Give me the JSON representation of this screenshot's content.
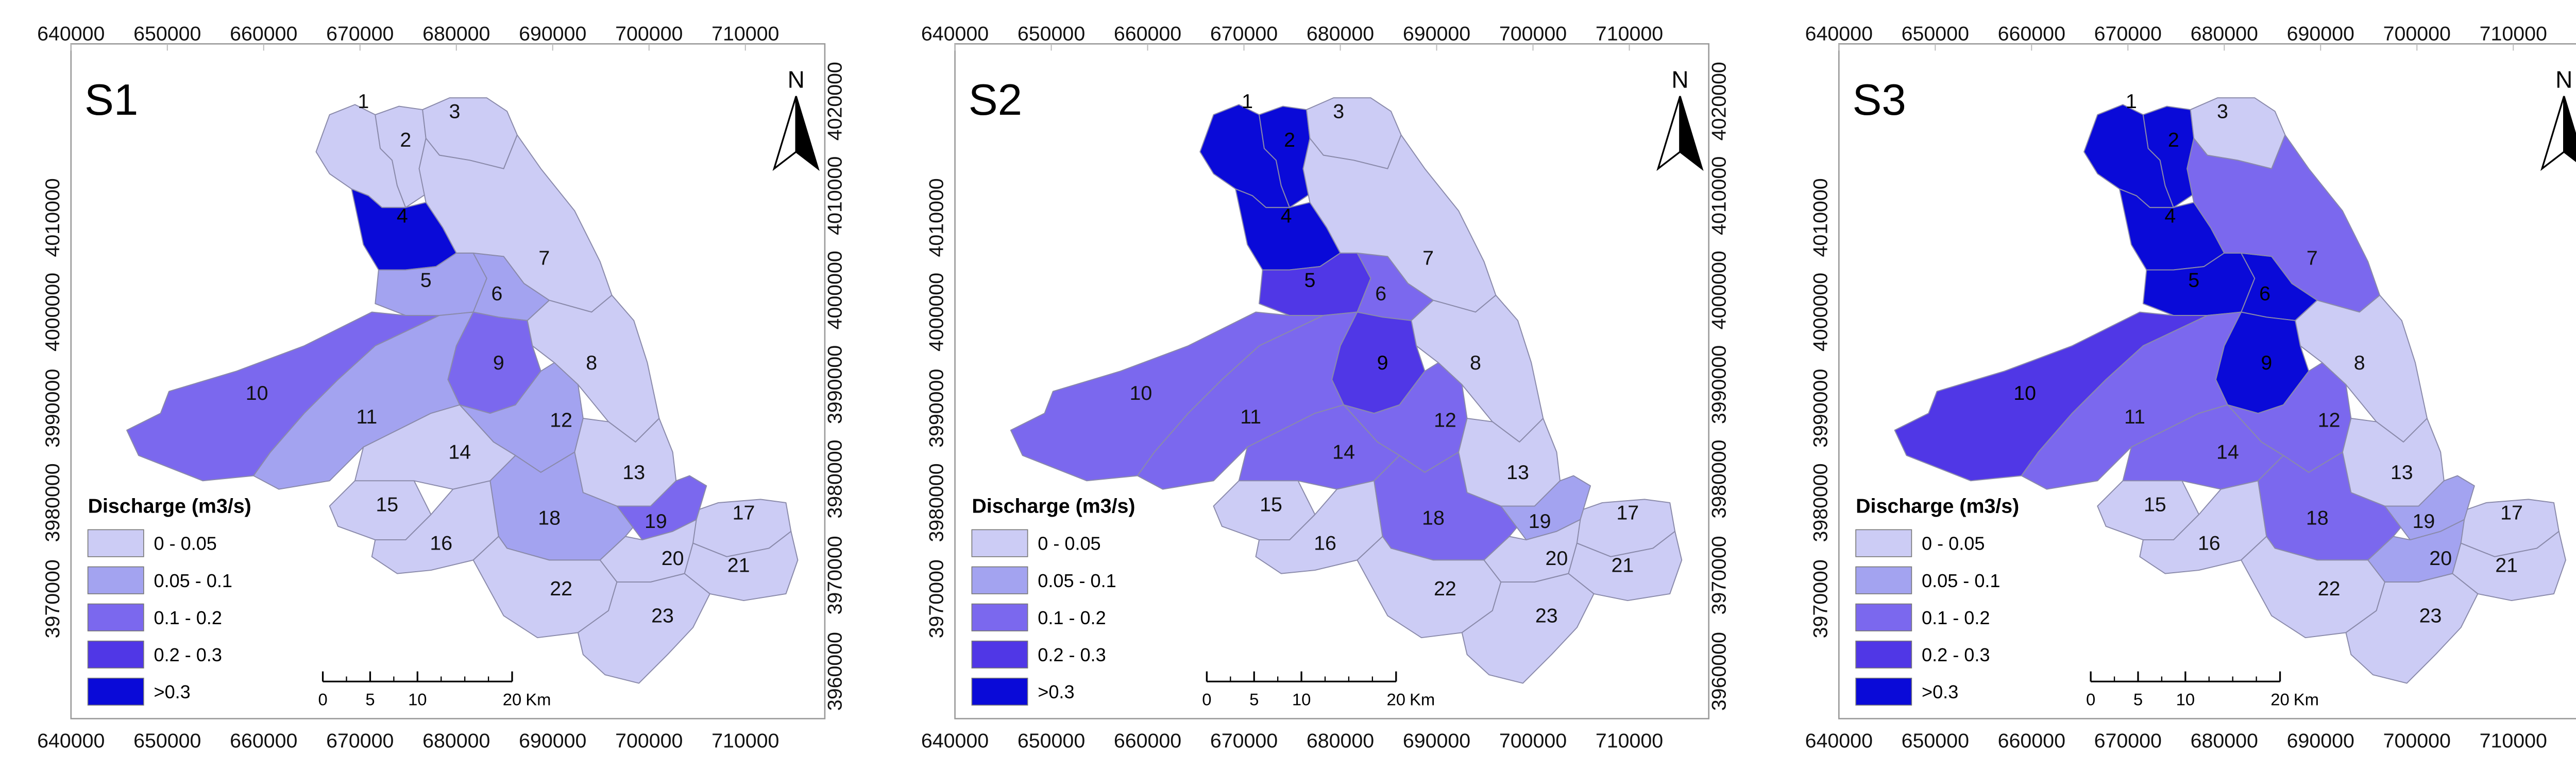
{
  "panels": [
    {
      "label": "S1",
      "classes": [
        0,
        0,
        0,
        4,
        1,
        1,
        0,
        0,
        2,
        2,
        1,
        1,
        0,
        0,
        0,
        0,
        0,
        1,
        2,
        0,
        0,
        0,
        0
      ]
    },
    {
      "label": "S2",
      "classes": [
        4,
        4,
        0,
        4,
        3,
        2,
        0,
        0,
        3,
        2,
        2,
        2,
        0,
        2,
        0,
        0,
        0,
        2,
        1,
        0,
        0,
        0,
        0
      ]
    },
    {
      "label": "S3",
      "classes": [
        4,
        4,
        0,
        4,
        4,
        4,
        2,
        0,
        4,
        3,
        2,
        2,
        0,
        2,
        0,
        0,
        0,
        2,
        1,
        1,
        0,
        0,
        0
      ]
    }
  ],
  "x_ticks": [
    "640000",
    "650000",
    "660000",
    "670000",
    "680000",
    "690000",
    "700000",
    "710000"
  ],
  "y_ticks": [
    "3960000",
    "3970000",
    "3980000",
    "3990000",
    "4000000",
    "4010000",
    "4020000"
  ],
  "subbasin_labels": [
    "1",
    "2",
    "3",
    "4",
    "5",
    "6",
    "7",
    "8",
    "9",
    "10",
    "11",
    "12",
    "13",
    "14",
    "15",
    "16",
    "17",
    "18",
    "19",
    "20",
    "21",
    "22",
    "23"
  ],
  "north_label": "N",
  "legend": {
    "title": "Discharge (m3/s)",
    "labels": [
      "0 - 0.05",
      "0.05 - 0.1",
      "0.1 - 0.2",
      "0.2 - 0.3",
      ">0.3"
    ],
    "colors": [
      "#ccccf5",
      "#a3a3f0",
      "#7b68ee",
      "#5037e6",
      "#0a0ad8"
    ]
  },
  "scalebar": {
    "ticks": [
      "0",
      "5",
      "10",
      "20"
    ],
    "unit": "Km"
  },
  "outline_color": "#8a8aaa"
}
